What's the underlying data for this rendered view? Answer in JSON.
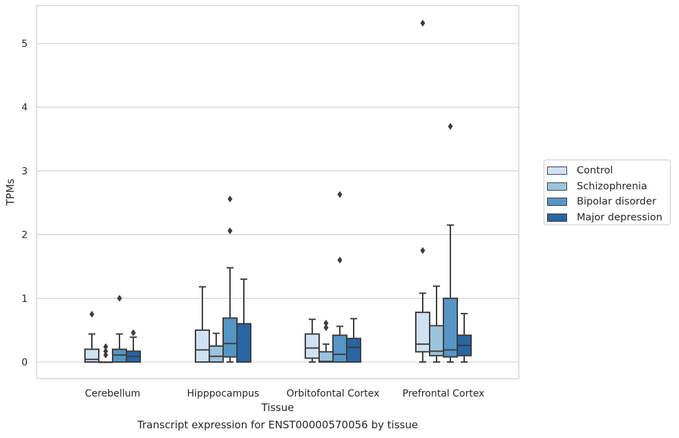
{
  "caption": "Transcript expression for ENST00000570056 by tissue",
  "chart_data": {
    "type": "box",
    "title": "",
    "xlabel": "Tissue",
    "ylabel": "TPMs",
    "ylim": [
      -0.26,
      5.6
    ],
    "yticks": [
      0,
      1,
      2,
      3,
      4,
      5
    ],
    "grid": "horizontal",
    "legend_position": "right",
    "categories": [
      "Cerebellum",
      "Hipppocampus",
      "Orbitofontal Cortex",
      "Prefrontal Cortex"
    ],
    "series": [
      {
        "name": "Control",
        "color": "#d0e1f2",
        "boxes": [
          {
            "whislo": 0,
            "q1": 0,
            "med": 0.04,
            "q3": 0.2,
            "whishi": 0.44,
            "fliers": [
              0.75
            ]
          },
          {
            "whislo": 0,
            "q1": 0,
            "med": 0.19,
            "q3": 0.5,
            "whishi": 1.18,
            "fliers": []
          },
          {
            "whislo": 0,
            "q1": 0.06,
            "med": 0.22,
            "q3": 0.44,
            "whishi": 0.67,
            "fliers": []
          },
          {
            "whislo": 0,
            "q1": 0.16,
            "med": 0.28,
            "q3": 0.78,
            "whishi": 1.08,
            "fliers": [
              1.75,
              5.32
            ]
          }
        ]
      },
      {
        "name": "Schizophrenia",
        "color": "#9cc3de",
        "boxes": [
          {
            "whislo": 0,
            "q1": 0,
            "med": 0,
            "q3": 0,
            "whishi": 0,
            "fliers": [
              0.11,
              0.17,
              0.24
            ]
          },
          {
            "whislo": 0,
            "q1": 0,
            "med": 0.09,
            "q3": 0.25,
            "whishi": 0.45,
            "fliers": []
          },
          {
            "whislo": 0,
            "q1": 0,
            "med": 0.01,
            "q3": 0.16,
            "whishi": 0.28,
            "fliers": [
              0.54,
              0.61
            ]
          },
          {
            "whislo": 0,
            "q1": 0.1,
            "med": 0.17,
            "q3": 0.57,
            "whishi": 1.19,
            "fliers": []
          }
        ]
      },
      {
        "name": "Bipolar disorder",
        "color": "#5596c5",
        "boxes": [
          {
            "whislo": 0,
            "q1": 0,
            "med": 0.11,
            "q3": 0.2,
            "whishi": 0.44,
            "fliers": [
              1.0
            ]
          },
          {
            "whislo": 0,
            "q1": 0.08,
            "med": 0.29,
            "q3": 0.69,
            "whishi": 1.48,
            "fliers": [
              2.06,
              2.56
            ]
          },
          {
            "whislo": 0,
            "q1": 0,
            "med": 0.12,
            "q3": 0.42,
            "whishi": 0.56,
            "fliers": [
              1.6,
              2.63
            ]
          },
          {
            "whislo": 0,
            "q1": 0.08,
            "med": 0.19,
            "q3": 1.0,
            "whishi": 2.15,
            "fliers": [
              3.7
            ]
          }
        ]
      },
      {
        "name": "Major depression",
        "color": "#2865a3",
        "boxes": [
          {
            "whislo": 0,
            "q1": 0,
            "med": 0.09,
            "q3": 0.17,
            "whishi": 0.39,
            "fliers": [
              0.46
            ]
          },
          {
            "whislo": 0,
            "q1": 0,
            "med": 0.6,
            "q3": 0.6,
            "whishi": 1.3,
            "fliers": []
          },
          {
            "whislo": 0,
            "q1": 0,
            "med": 0.23,
            "q3": 0.37,
            "whishi": 0.68,
            "fliers": []
          },
          {
            "whislo": 0,
            "q1": 0.1,
            "med": 0.26,
            "q3": 0.42,
            "whishi": 0.76,
            "fliers": []
          }
        ]
      }
    ]
  }
}
